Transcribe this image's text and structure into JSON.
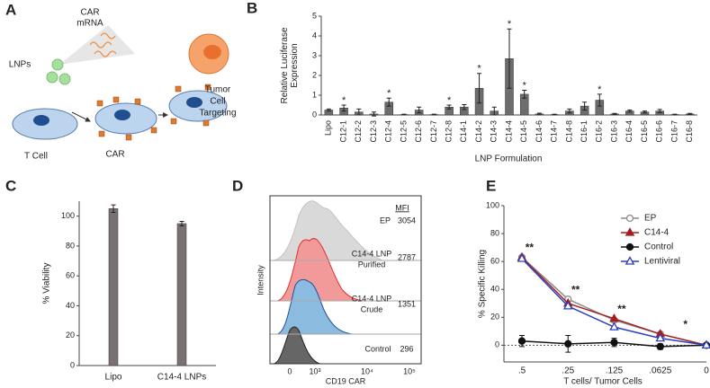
{
  "panel_labels": [
    "A",
    "B",
    "C",
    "D",
    "E"
  ],
  "schematic": {
    "mrna_label": [
      "CAR",
      "mRNA"
    ],
    "lnp_label": "LNPs",
    "tcell_label": "T Cell",
    "car_label": "CAR",
    "tumor_label": [
      "Tumor",
      "Cell",
      "Targeting"
    ]
  },
  "flow_panel": {
    "y_label": "Intensity",
    "x_label": "CD19 CAR",
    "x_tick_labels": [
      "0",
      "10³",
      "10⁴",
      "10⁵"
    ],
    "mfi_header": "MFI",
    "rows": [
      {
        "label": [
          "EP"
        ],
        "mfi": 3054
      },
      {
        "label": [
          "C14-4 LNP",
          "Purified"
        ],
        "mfi": 2787
      },
      {
        "label": [
          "C14-4 LNP",
          "Crude"
        ],
        "mfi": 1351
      },
      {
        "label": [
          "Control"
        ],
        "mfi": 296
      }
    ]
  },
  "chart_data": [
    {
      "type": "bar",
      "y_label": [
        "Relative Luciferase",
        "Expression"
      ],
      "x_label": "LNP Formulation",
      "categories": [
        "Lipo",
        "C12-1",
        "C12-2",
        "C12-3",
        "C12-4",
        "C12-5",
        "C12-6",
        "C12-7",
        "C12-8",
        "C14-1",
        "C14-2",
        "C14-3",
        "C14-4",
        "C14-5",
        "C14-6",
        "C14-7",
        "C14-8",
        "C16-1",
        "C16-2",
        "C16-3",
        "C16-4",
        "C16-5",
        "C16-6",
        "C16-7",
        "C16-8"
      ],
      "values": [
        0.25,
        0.35,
        0.15,
        0.05,
        0.65,
        0.02,
        0.25,
        0.02,
        0.4,
        0.4,
        1.35,
        0.2,
        2.85,
        1.05,
        0.05,
        0.02,
        0.2,
        0.45,
        0.75,
        0.05,
        0.2,
        0.15,
        0.2,
        0.02,
        0.05
      ],
      "errors": [
        0.05,
        0.15,
        0.15,
        0.1,
        0.2,
        0.02,
        0.15,
        0.02,
        0.1,
        0.12,
        0.75,
        0.2,
        1.5,
        0.2,
        0.04,
        0.02,
        0.1,
        0.2,
        0.3,
        0.03,
        0.05,
        0.05,
        0.08,
        0.02,
        0.03
      ],
      "annotations": [
        null,
        "*",
        null,
        null,
        "*",
        null,
        null,
        null,
        "*",
        null,
        "*",
        null,
        "*",
        "*",
        null,
        null,
        null,
        null,
        "*",
        null,
        null,
        null,
        null,
        null,
        null
      ],
      "color": "#6d6d6d",
      "ylim": [
        0,
        5
      ],
      "yticks": [
        0,
        1,
        2,
        3,
        4,
        5
      ]
    },
    {
      "type": "bar",
      "y_label": [
        "% Viability"
      ],
      "categories": [
        "Lipo",
        "C14-4 LNPs"
      ],
      "values": [
        105,
        95
      ],
      "errors": [
        2.5,
        1.5
      ],
      "color": "#7a7272",
      "ylim": [
        0,
        110
      ],
      "yticks": [
        0,
        20,
        40,
        60,
        80,
        100
      ]
    },
    {
      "type": "line",
      "y_label": [
        "% Specific Killing"
      ],
      "x_label": "T cells/ Tumor Cells",
      "categories": [
        ".5",
        ".25",
        ".125",
        ".0625",
        "0"
      ],
      "series": [
        {
          "name": "EP",
          "color": "#8c8c8c",
          "marker": "circle",
          "filled": false,
          "values": [
            63,
            33,
            18,
            8,
            0
          ]
        },
        {
          "name": "C14-4",
          "color": "#a31f1f",
          "marker": "triangle",
          "filled": true,
          "values": [
            63,
            30,
            19,
            8,
            0
          ]
        },
        {
          "name": "Control",
          "color": "#111111",
          "marker": "circle",
          "filled": true,
          "values": [
            3,
            1,
            2,
            -1,
            0
          ],
          "errors": [
            4,
            6,
            3,
            2,
            1
          ]
        },
        {
          "name": "Lentiviral",
          "color": "#2a3fbf",
          "marker": "triangle",
          "filled": false,
          "values": [
            62,
            28,
            13,
            5,
            0
          ]
        }
      ],
      "annotations": [
        "**",
        "**",
        "**",
        "*",
        null
      ],
      "ylim": [
        -12,
        100
      ],
      "yticks": [
        0,
        20,
        40,
        60,
        80,
        100
      ],
      "zero_line": "dotted",
      "legend": "upper right"
    }
  ]
}
